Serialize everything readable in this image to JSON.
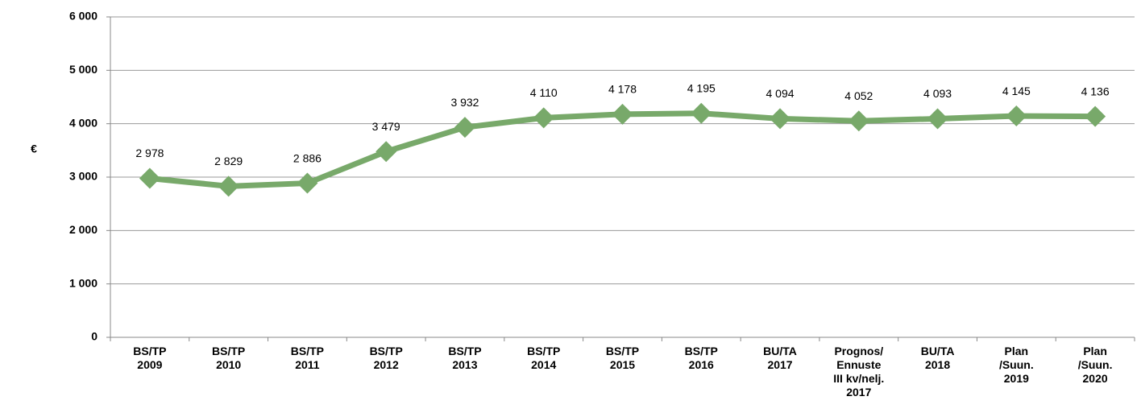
{
  "chart_data": {
    "type": "line",
    "y_label": "€",
    "categories": [
      "BS/TP\n2009",
      "BS/TP\n2010",
      "BS/TP\n2011",
      "BS/TP\n2012",
      "BS/TP\n2013",
      "BS/TP\n2014",
      "BS/TP\n2015",
      "BS/TP\n2016",
      "BU/TA\n2017",
      "Prognos/\nEnnuste\nIII kv/nelj.\n2017",
      "BU/TA\n2018",
      "Plan\n/Suun.\n2019",
      "Plan\n/Suun.\n2020"
    ],
    "values": [
      2978,
      2829,
      2886,
      3479,
      3932,
      4110,
      4178,
      4195,
      4094,
      4052,
      4093,
      4145,
      4136
    ],
    "value_labels": [
      "2 978",
      "2 829",
      "2 886",
      "3 479",
      "3 932",
      "4 110",
      "4 178",
      "4 195",
      "4 094",
      "4 052",
      "4 093",
      "4 145",
      "4 136"
    ],
    "color": "#78a96a",
    "ylim": [
      0,
      6000
    ],
    "yticks": [
      0,
      {
        "value": 1000,
        "label": "1 000"
      },
      {
        "value": 2000,
        "label": "2 000"
      },
      {
        "value": 3000,
        "label": "3 000"
      },
      {
        "value": 4000,
        "label": "4 000"
      },
      {
        "value": 5000,
        "label": "5 000"
      },
      {
        "value": 6000,
        "label": "6 000"
      }
    ],
    "grid": true
  }
}
